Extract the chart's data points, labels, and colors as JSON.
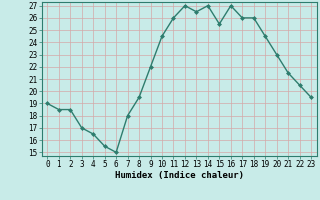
{
  "xlabel": "Humidex (Indice chaleur)",
  "x": [
    0,
    1,
    2,
    3,
    4,
    5,
    6,
    7,
    8,
    9,
    10,
    11,
    12,
    13,
    14,
    15,
    16,
    17,
    18,
    19,
    20,
    21,
    22,
    23
  ],
  "y": [
    19,
    18.5,
    18.5,
    17,
    16.5,
    15.5,
    15,
    18,
    19.5,
    22,
    24.5,
    26,
    27,
    26.5,
    27,
    25.5,
    27,
    26,
    26,
    24.5,
    23,
    21.5,
    20.5,
    19.5
  ],
  "line_color": "#2e7d6e",
  "marker": "D",
  "marker_size": 2.0,
  "bg_color": "#c8ebe8",
  "grid_color": "#d4a8a8",
  "ylim_min": 15,
  "ylim_max": 27,
  "yticks": [
    15,
    16,
    17,
    18,
    19,
    20,
    21,
    22,
    23,
    24,
    25,
    26,
    27
  ],
  "xticks": [
    0,
    1,
    2,
    3,
    4,
    5,
    6,
    7,
    8,
    9,
    10,
    11,
    12,
    13,
    14,
    15,
    16,
    17,
    18,
    19,
    20,
    21,
    22,
    23
  ],
  "tick_fontsize": 5.5,
  "xlabel_fontsize": 6.5,
  "line_width": 1.0
}
